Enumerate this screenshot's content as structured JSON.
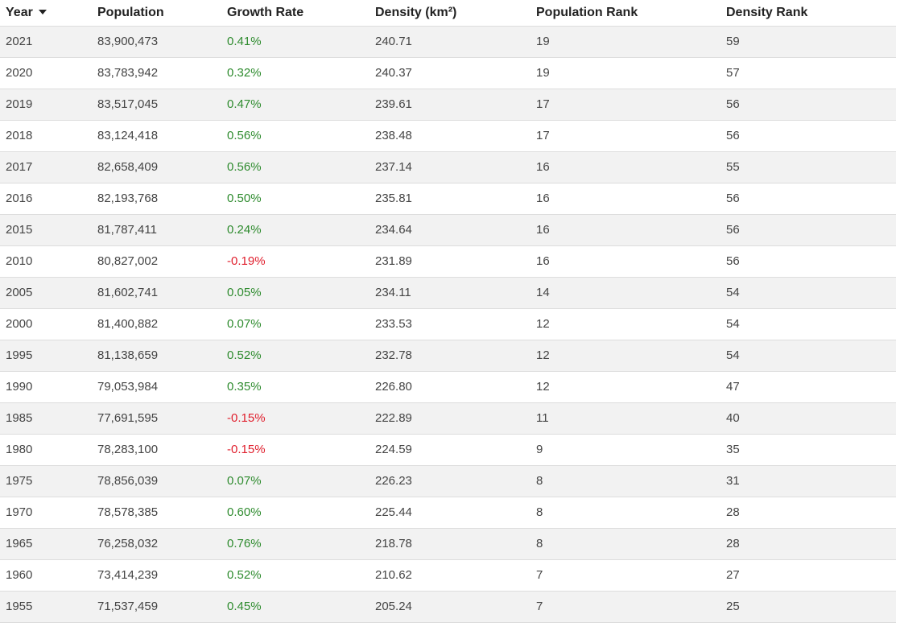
{
  "table": {
    "headers": {
      "year": "Year",
      "population": "Population",
      "growth_rate": "Growth Rate",
      "density": "Density (km²)",
      "population_rank": "Population Rank",
      "density_rank": "Density Rank"
    },
    "sort_column": "year",
    "sort_direction": "descending",
    "colors": {
      "positive_growth": "#2e8b2e",
      "negative_growth": "#e0202e",
      "stripe": "#f2f2f2"
    },
    "rows": [
      {
        "year": "2021",
        "population": "83,900,473",
        "growth_rate": "0.41%",
        "density": "240.71",
        "population_rank": "19",
        "density_rank": "59"
      },
      {
        "year": "2020",
        "population": "83,783,942",
        "growth_rate": "0.32%",
        "density": "240.37",
        "population_rank": "19",
        "density_rank": "57"
      },
      {
        "year": "2019",
        "population": "83,517,045",
        "growth_rate": "0.47%",
        "density": "239.61",
        "population_rank": "17",
        "density_rank": "56"
      },
      {
        "year": "2018",
        "population": "83,124,418",
        "growth_rate": "0.56%",
        "density": "238.48",
        "population_rank": "17",
        "density_rank": "56"
      },
      {
        "year": "2017",
        "population": "82,658,409",
        "growth_rate": "0.56%",
        "density": "237.14",
        "population_rank": "16",
        "density_rank": "55"
      },
      {
        "year": "2016",
        "population": "82,193,768",
        "growth_rate": "0.50%",
        "density": "235.81",
        "population_rank": "16",
        "density_rank": "56"
      },
      {
        "year": "2015",
        "population": "81,787,411",
        "growth_rate": "0.24%",
        "density": "234.64",
        "population_rank": "16",
        "density_rank": "56"
      },
      {
        "year": "2010",
        "population": "80,827,002",
        "growth_rate": "-0.19%",
        "density": "231.89",
        "population_rank": "16",
        "density_rank": "56"
      },
      {
        "year": "2005",
        "population": "81,602,741",
        "growth_rate": "0.05%",
        "density": "234.11",
        "population_rank": "14",
        "density_rank": "54"
      },
      {
        "year": "2000",
        "population": "81,400,882",
        "growth_rate": "0.07%",
        "density": "233.53",
        "population_rank": "12",
        "density_rank": "54"
      },
      {
        "year": "1995",
        "population": "81,138,659",
        "growth_rate": "0.52%",
        "density": "232.78",
        "population_rank": "12",
        "density_rank": "54"
      },
      {
        "year": "1990",
        "population": "79,053,984",
        "growth_rate": "0.35%",
        "density": "226.80",
        "population_rank": "12",
        "density_rank": "47"
      },
      {
        "year": "1985",
        "population": "77,691,595",
        "growth_rate": "-0.15%",
        "density": "222.89",
        "population_rank": "11",
        "density_rank": "40"
      },
      {
        "year": "1980",
        "population": "78,283,100",
        "growth_rate": "-0.15%",
        "density": "224.59",
        "population_rank": "9",
        "density_rank": "35"
      },
      {
        "year": "1975",
        "population": "78,856,039",
        "growth_rate": "0.07%",
        "density": "226.23",
        "population_rank": "8",
        "density_rank": "31"
      },
      {
        "year": "1970",
        "population": "78,578,385",
        "growth_rate": "0.60%",
        "density": "225.44",
        "population_rank": "8",
        "density_rank": "28"
      },
      {
        "year": "1965",
        "population": "76,258,032",
        "growth_rate": "0.76%",
        "density": "218.78",
        "population_rank": "8",
        "density_rank": "28"
      },
      {
        "year": "1960",
        "population": "73,414,239",
        "growth_rate": "0.52%",
        "density": "210.62",
        "population_rank": "7",
        "density_rank": "27"
      },
      {
        "year": "1955",
        "population": "71,537,459",
        "growth_rate": "0.45%",
        "density": "205.24",
        "population_rank": "7",
        "density_rank": "25"
      }
    ]
  }
}
